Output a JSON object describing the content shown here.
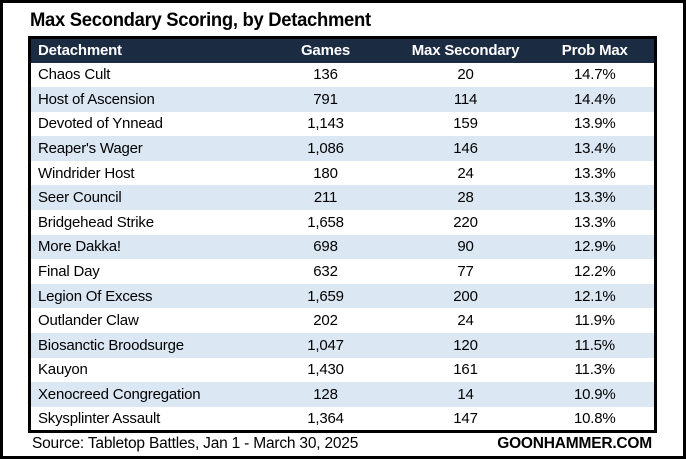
{
  "chart_data": {
    "type": "table",
    "title": "Max Secondary Scoring, by Detachment",
    "columns": [
      "Detachment",
      "Games",
      "Max Secondary",
      "Prob Max"
    ],
    "rows": [
      [
        "Chaos Cult",
        "136",
        "20",
        "14.7%"
      ],
      [
        "Host of Ascension",
        "791",
        "114",
        "14.4%"
      ],
      [
        "Devoted of Ynnead",
        "1,143",
        "159",
        "13.9%"
      ],
      [
        "Reaper's Wager",
        "1,086",
        "146",
        "13.4%"
      ],
      [
        "Windrider Host",
        "180",
        "24",
        "13.3%"
      ],
      [
        "Seer Council",
        "211",
        "28",
        "13.3%"
      ],
      [
        "Bridgehead Strike",
        "1,658",
        "220",
        "13.3%"
      ],
      [
        "More Dakka!",
        "698",
        "90",
        "12.9%"
      ],
      [
        "Final Day",
        "632",
        "77",
        "12.2%"
      ],
      [
        "Legion Of Excess",
        "1,659",
        "200",
        "12.1%"
      ],
      [
        "Outlander Claw",
        "202",
        "24",
        "11.9%"
      ],
      [
        "Biosanctic Broodsurge",
        "1,047",
        "120",
        "11.5%"
      ],
      [
        "Kauyon",
        "1,430",
        "161",
        "11.3%"
      ],
      [
        "Xenocreed Congregation",
        "128",
        "14",
        "10.9%"
      ],
      [
        "Skysplinter Assault",
        "1,364",
        "147",
        "10.8%"
      ]
    ],
    "layout": {
      "stripe_style": "alternating-rows",
      "grid": "off",
      "legend": "none"
    }
  },
  "footer": {
    "source": "Source: Tabletop Battles, Jan 1 - March 30, 2025",
    "brand": "GOONHAMMER.COM"
  },
  "colors": {
    "header_bg": "#1b2b42",
    "header_text": "#ffffff",
    "stripe_bg": "#dce7f4",
    "border": "#000000",
    "body_text": "#000000"
  }
}
